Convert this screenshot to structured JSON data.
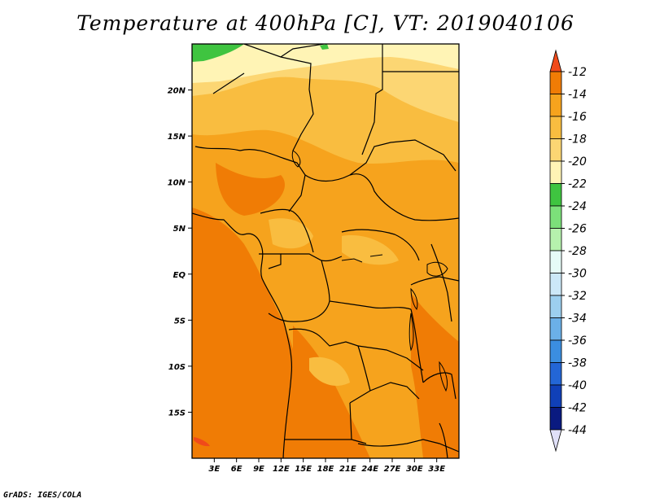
{
  "title": "Temperature at 400hPa [C], VT: 2019040106",
  "credit": "GrADS: IGES/COLA",
  "map": {
    "lon_range": [
      0,
      36
    ],
    "lat_range": [
      -20,
      25
    ],
    "x_ticks": [
      "3E",
      "6E",
      "9E",
      "12E",
      "15E",
      "18E",
      "21E",
      "24E",
      "27E",
      "30E",
      "33E"
    ],
    "x_tick_values": [
      3,
      6,
      9,
      12,
      15,
      18,
      21,
      24,
      27,
      30,
      33
    ],
    "y_ticks": [
      "20N",
      "15N",
      "10N",
      "5N",
      "EQ",
      "5S",
      "10S",
      "15S"
    ],
    "y_tick_values": [
      20,
      15,
      10,
      5,
      0,
      -5,
      -10,
      -15
    ]
  },
  "colorbar": {
    "labels": [
      "-12",
      "-14",
      "-16",
      "-18",
      "-20",
      "-22",
      "-24",
      "-26",
      "-28",
      "-30",
      "-32",
      "-34",
      "-36",
      "-38",
      "-40",
      "-42",
      "-44"
    ],
    "colors": [
      "#f04a1a",
      "#f07c05",
      "#f6a31d",
      "#f9bd40",
      "#fcd673",
      "#fff4b5",
      "#3fc440",
      "#7ce07a",
      "#b6f1ad",
      "#e6fbf7",
      "#cce8f8",
      "#9ccfef",
      "#6bb0e8",
      "#3b8ee0",
      "#2366d6",
      "#1040b8",
      "#0a1a80"
    ],
    "top_arrow_color": "#f04a1a",
    "bottom_arrow_color": "#e0e0f8"
  }
}
